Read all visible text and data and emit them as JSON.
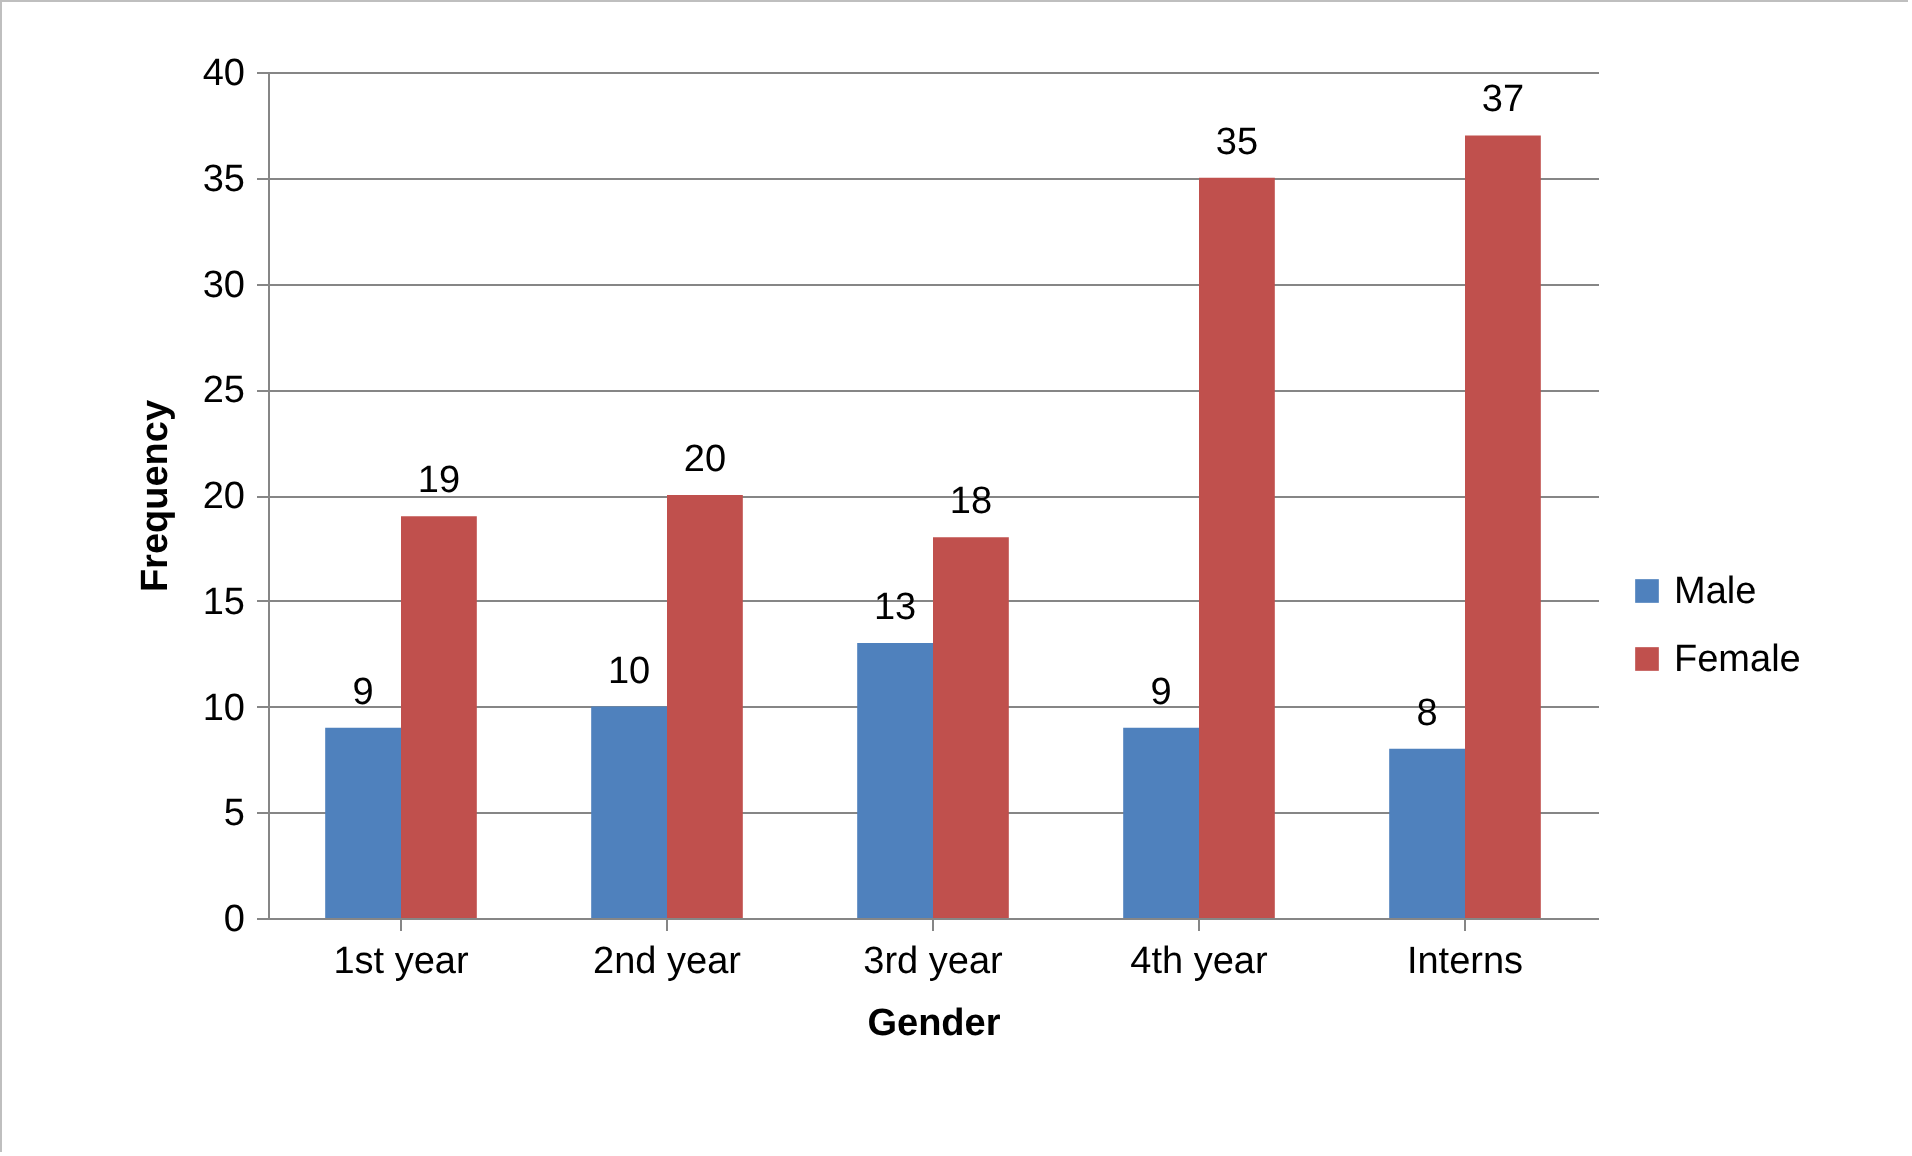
{
  "chart_data": {
    "type": "bar",
    "xlabel": "Gender",
    "ylabel": "Frequency",
    "categories": [
      "1st year",
      "2nd year",
      "3rd year",
      "4th year",
      "Interns"
    ],
    "series": [
      {
        "name": "Male",
        "color": "#4f81bd",
        "values": [
          9,
          10,
          13,
          9,
          8
        ]
      },
      {
        "name": "Female",
        "color": "#c0504d",
        "values": [
          19,
          20,
          18,
          35,
          37
        ]
      }
    ],
    "ylim": [
      0,
      40
    ],
    "yticks": [
      0,
      5,
      10,
      15,
      20,
      25,
      30,
      35,
      40
    ],
    "grid": "y",
    "legend": "right",
    "data_labels": true
  }
}
